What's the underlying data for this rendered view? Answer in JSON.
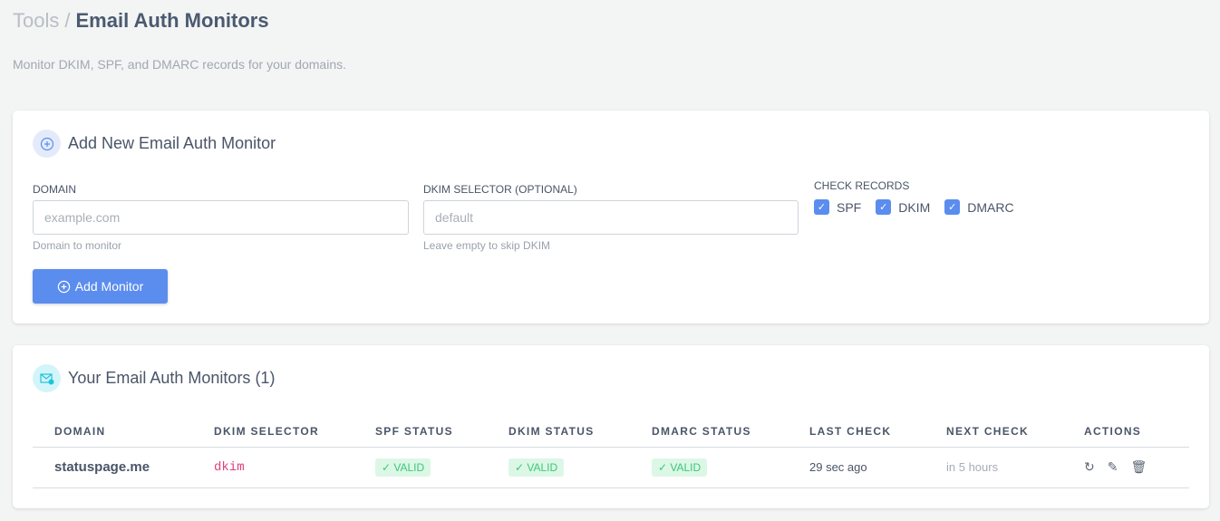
{
  "breadcrumb": {
    "parent": "Tools",
    "separator": "/",
    "current": "Email Auth Monitors"
  },
  "subtitle": "Monitor DKIM, SPF, and DMARC records for your domains.",
  "add_form": {
    "title": "Add New Email Auth Monitor",
    "domain": {
      "label": "DOMAIN",
      "placeholder": "example.com",
      "value": "",
      "help": "Domain to monitor"
    },
    "selector": {
      "label": "DKIM SELECTOR (OPTIONAL)",
      "placeholder": "default",
      "value": "",
      "help": "Leave empty to skip DKIM"
    },
    "check_records": {
      "label": "CHECK RECORDS",
      "options": [
        {
          "label": "SPF",
          "checked": true
        },
        {
          "label": "DKIM",
          "checked": true
        },
        {
          "label": "DMARC",
          "checked": true
        }
      ]
    },
    "submit_label": "Add Monitor"
  },
  "monitors": {
    "title": "Your Email Auth Monitors (1)",
    "columns": [
      "DOMAIN",
      "DKIM SELECTOR",
      "SPF STATUS",
      "DKIM STATUS",
      "DMARC STATUS",
      "LAST CHECK",
      "NEXT CHECK",
      "ACTIONS"
    ],
    "rows": [
      {
        "domain": "statuspage.me",
        "selector": "dkim",
        "spf": "✓ VALID",
        "dkim": "✓ VALID",
        "dmarc": "✓ VALID",
        "last_check": "29 sec ago",
        "next_check": "in 5 hours",
        "actions": [
          "refresh-icon",
          "edit-icon",
          "trash-icon"
        ]
      }
    ]
  },
  "colors": {
    "accent": "#5b8def",
    "valid_bg": "#dcf7e6",
    "valid_text": "#3cc77a",
    "selector": "#e0407d"
  }
}
